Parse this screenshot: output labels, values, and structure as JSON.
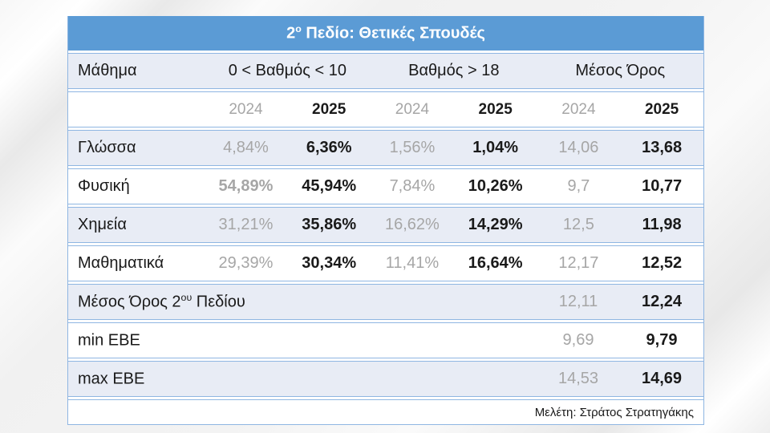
{
  "title": {
    "prefix": "2",
    "sup": "ο",
    "rest": " Πεδίο: Θετικές Σπουδές"
  },
  "header": {
    "subject": "Μάθημα",
    "col_low": "0 < Βαθμός < 10",
    "col_high": "Βαθμός > 18",
    "col_avg": "Μέσος Όρος"
  },
  "years": [
    "2024",
    "2025",
    "2024",
    "2025",
    "2024",
    "2025"
  ],
  "rows": [
    {
      "label": "Γλώσσα",
      "values": [
        "4,84%",
        "6,36%",
        "1,56%",
        "1,04%",
        "14,06",
        "13,68"
      ]
    },
    {
      "label": "Φυσική",
      "values": [
        "54,89%",
        "45,94%",
        "7,84%",
        "10,26%",
        "9,7",
        "10,77"
      ]
    },
    {
      "label": "Χημεία",
      "values": [
        "31,21%",
        "35,86%",
        "16,62%",
        "14,29%",
        "12,5",
        "11,98"
      ]
    },
    {
      "label": "Μαθηματικά",
      "values": [
        "29,39%",
        "30,34%",
        "11,41%",
        "16,64%",
        "12,17",
        "12,52"
      ]
    }
  ],
  "summary_rows": [
    {
      "label_prefix": "Μέσος Όρος 2",
      "label_sup": "ου",
      "label_rest": " Πεδίου",
      "values": [
        "12,11",
        "12,24"
      ]
    },
    {
      "label_prefix": "min ΕΒΕ",
      "label_sup": "",
      "label_rest": "",
      "values": [
        "9,69",
        "9,79"
      ]
    },
    {
      "label_prefix": "max ΕΒΕ",
      "label_sup": "",
      "label_rest": "",
      "values": [
        "14,53",
        "14,69"
      ]
    }
  ],
  "footer": {
    "credit": "Μελέτη: Στράτος Στρατηγάκης"
  },
  "colors": {
    "title_bar": "#5B9BD5",
    "row_shade": "#E8ECF5",
    "border": "#8FB6E2",
    "muted_text": "#A6A6A6",
    "dark_text": "#1A1A1A"
  },
  "chart_data": {
    "type": "table",
    "title": "2ο Πεδίο: Θετικές Σπουδές",
    "column_groups": [
      "Μάθημα",
      "0 < Βαθμός < 10",
      "Βαθμός > 18",
      "Μέσος Όρος"
    ],
    "years": [
      "2024",
      "2025"
    ],
    "rows": [
      {
        "subject": "Γλώσσα",
        "grade_0_10": {
          "2024": "4,84%",
          "2025": "6,36%"
        },
        "grade_over_18": {
          "2024": "1,56%",
          "2025": "1,04%"
        },
        "average": {
          "2024": "14,06",
          "2025": "13,68"
        }
      },
      {
        "subject": "Φυσική",
        "grade_0_10": {
          "2024": "54,89%",
          "2025": "45,94%"
        },
        "grade_over_18": {
          "2024": "7,84%",
          "2025": "10,26%"
        },
        "average": {
          "2024": "9,7",
          "2025": "10,77"
        }
      },
      {
        "subject": "Χημεία",
        "grade_0_10": {
          "2024": "31,21%",
          "2025": "35,86%"
        },
        "grade_over_18": {
          "2024": "16,62%",
          "2025": "14,29%"
        },
        "average": {
          "2024": "12,5",
          "2025": "11,98"
        }
      },
      {
        "subject": "Μαθηματικά",
        "grade_0_10": {
          "2024": "29,39%",
          "2025": "30,34%"
        },
        "grade_over_18": {
          "2024": "11,41%",
          "2025": "16,64%"
        },
        "average": {
          "2024": "12,17",
          "2025": "12,52"
        }
      }
    ],
    "summary": [
      {
        "label": "Μέσος Όρος 2ου Πεδίου",
        "average": {
          "2024": "12,11",
          "2025": "12,24"
        }
      },
      {
        "label": "min ΕΒΕ",
        "average": {
          "2024": "9,69",
          "2025": "9,79"
        }
      },
      {
        "label": "max ΕΒΕ",
        "average": {
          "2024": "14,53",
          "2025": "14,69"
        }
      }
    ],
    "note": "Μελέτη: Στράτος Στρατηγάκης"
  }
}
